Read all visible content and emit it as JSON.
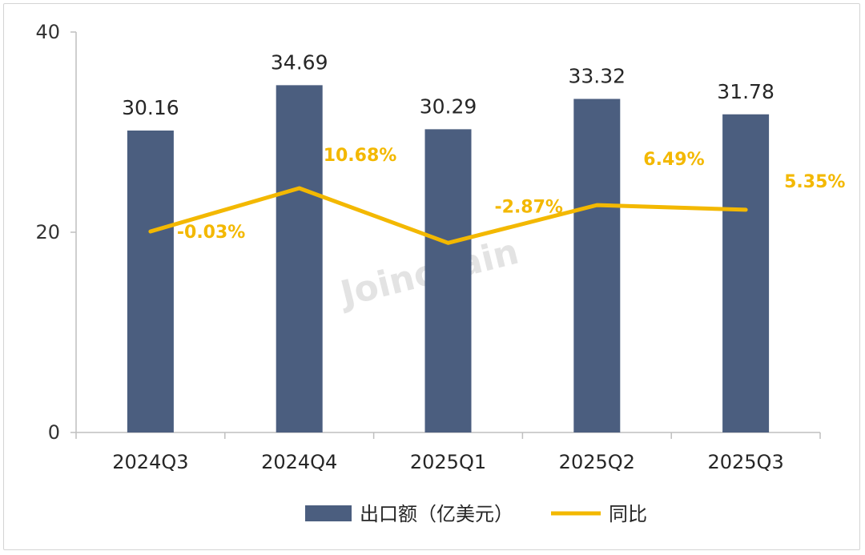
{
  "chart_data": {
    "type": "bar",
    "categories": [
      "2024Q3",
      "2024Q4",
      "2025Q1",
      "2025Q2",
      "2025Q3"
    ],
    "series": [
      {
        "name": "出口额（亿美元）",
        "kind": "bar",
        "values": [
          30.16,
          34.69,
          30.29,
          33.32,
          31.78
        ],
        "labels": [
          "30.16",
          "34.69",
          "30.29",
          "33.32",
          "31.78"
        ]
      },
      {
        "name": "同比",
        "kind": "line",
        "values": [
          -0.03,
          10.68,
          -2.87,
          6.49,
          5.35
        ],
        "labels": [
          "-0.03%",
          "10.68%",
          "-2.87%",
          "6.49%",
          "5.35%"
        ]
      }
    ],
    "y_axis": {
      "min": 0,
      "max": 40,
      "ticks": [
        "0",
        "20",
        "40"
      ]
    },
    "grid": false,
    "legend": "bottom",
    "colors": {
      "bar": "#4b5e7f",
      "line": "#f3b800",
      "line_label": "#f3b800",
      "axis": "#bfbfbf"
    }
  },
  "watermark": "Joinchain"
}
